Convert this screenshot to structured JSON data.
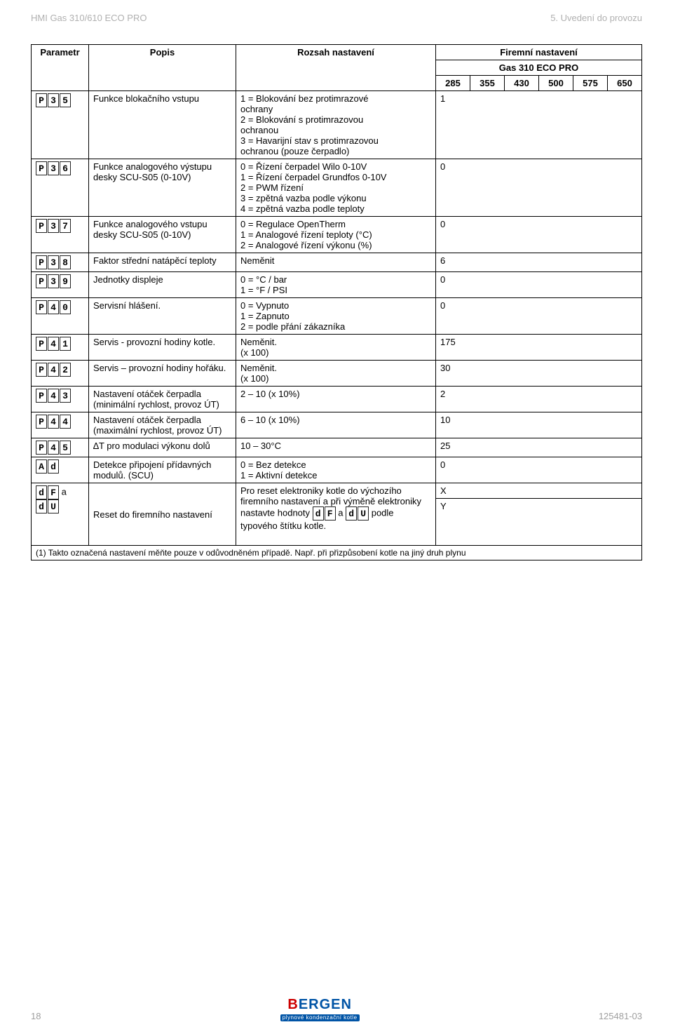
{
  "header": {
    "left": "HMI Gas 310/610 ECO PRO",
    "right": "5. Uvedení do provozu"
  },
  "table_head": {
    "parametr": "Parametr",
    "popis": "Popis",
    "rozsah": "Rozsah nastavení",
    "firemni": "Firemní nastavení",
    "product": "Gas 310 ECO PRO",
    "cols": [
      "285",
      "355",
      "430",
      "500",
      "575",
      "650"
    ]
  },
  "rows": [
    {
      "code": [
        "P",
        "3",
        "5"
      ],
      "popis": "Funkce blokačního vstupu",
      "rozsah": "1 =  Blokování bez protimrazové\n       ochrany\n2 =  Blokování s protimrazovou\n       ochranou\n3 =  Havarijní stav s protimrazovou\n       ochranou (pouze čerpadlo)",
      "value": "1"
    },
    {
      "code": [
        "P",
        "3",
        "6"
      ],
      "popis": "Funkce analogového výstupu desky SCU-S05 (0-10V)",
      "rozsah": "0 =  Řízení čerpadel Wilo 0-10V\n1 =  Řízení čerpadel Grundfos 0-10V\n2 =  PWM řízení\n3 =  zpětná vazba podle výkonu\n4 =  zpětná vazba podle teploty",
      "value": "0"
    },
    {
      "code": [
        "P",
        "3",
        "7"
      ],
      "popis": "Funkce analogového vstupu desky SCU-S05 (0-10V)",
      "rozsah": "0 =  Regulace OpenTherm\n1 =  Analogové řízení teploty (°C)\n2 =  Analogové řízení výkonu (%)",
      "value": "0"
    },
    {
      "code": [
        "P",
        "3",
        "8"
      ],
      "popis": "Faktor střední natápěcí teploty",
      "rozsah": "Neměnit",
      "value": "6"
    },
    {
      "code": [
        "P",
        "3",
        "9"
      ],
      "popis": "Jednotky displeje",
      "rozsah": "0 =  °C / bar\n1 =  °F / PSI",
      "value": "0"
    },
    {
      "code": [
        "P",
        "4",
        "0"
      ],
      "popis": "Servisní hlášení.",
      "rozsah": "0 =  Vypnuto\n1 =  Zapnuto\n2 =  podle přání zákazníka",
      "value": "0"
    },
    {
      "code": [
        "P",
        "4",
        "1"
      ],
      "popis": "Servis - provozní hodiny kotle.",
      "rozsah": "Neměnit.\n(x 100)",
      "value": "175"
    },
    {
      "code": [
        "P",
        "4",
        "2"
      ],
      "popis": "Servis – provozní hodiny hořáku.",
      "rozsah": "Neměnit.\n(x 100)",
      "value": "30"
    },
    {
      "code": [
        "P",
        "4",
        "3"
      ],
      "popis": "Nastavení otáček čerpadla (minimální rychlost, provoz ÚT)",
      "rozsah": "2 – 10 (x 10%)",
      "value": "2"
    },
    {
      "code": [
        "P",
        "4",
        "4"
      ],
      "popis": "Nastavení otáček čerpadla (maximální rychlost, provoz ÚT)",
      "rozsah": "6 – 10 (x 10%)",
      "value": "10"
    },
    {
      "code": [
        "P",
        "4",
        "5"
      ],
      "popis": "∆T pro modulaci výkonu dolů",
      "rozsah": "10 – 30°C",
      "value": "25"
    },
    {
      "code": [
        "A",
        "d"
      ],
      "popis": "Detekce připojení přídavných modulů. (SCU)",
      "rozsah": "0 =  Bez detekce\n1 =  Aktivní detekce",
      "value": "0"
    }
  ],
  "reset_row": {
    "code_a": [
      "d",
      "F"
    ],
    "sep": " a ",
    "code_b": [
      "d",
      "U"
    ],
    "popis": "Reset do firemního nastavení",
    "rozsah_pre": "Pro reset elektroniky kotle do výchozího firemního nastavení a při výměně elektroniky nastavte hodnoty ",
    "rozsah_mid": " a ",
    "rozsah_post": " podle typového štítku kotle.",
    "val_top": "X",
    "val_bottom": "Y"
  },
  "footnote": "(1) Takto označená nastavení měňte pouze v odůvodněném případě. Např. při přizpůsobení kotle na jiný druh plynu",
  "footer": {
    "page": "18",
    "doc": "125481-03",
    "logo_b": "B",
    "logo_rest": "ERGEN",
    "logo_sub": "plynové kondenzační kotle"
  }
}
